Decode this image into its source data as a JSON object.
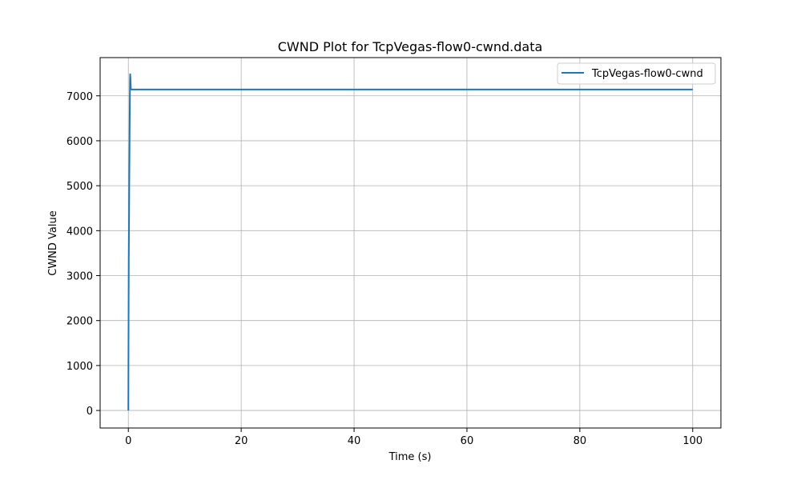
{
  "chart_data": {
    "type": "line",
    "title": "CWND Plot for TcpVegas-flow0-cwnd.data",
    "xlabel": "Time (s)",
    "ylabel": "CWND Value",
    "xlim": [
      -5,
      105
    ],
    "ylim": [
      -390,
      7850
    ],
    "x_ticks": [
      0,
      20,
      40,
      60,
      80,
      100
    ],
    "y_ticks": [
      0,
      1000,
      2000,
      3000,
      4000,
      5000,
      6000,
      7000
    ],
    "grid": true,
    "legend_position": "top-right",
    "series": [
      {
        "name": "TcpVegas-flow0-cwnd",
        "color": "#1f77b4",
        "x": [
          0,
          0.02,
          0.05,
          0.08,
          0.1,
          0.13,
          0.16,
          0.2,
          0.23,
          0.27,
          0.3,
          0.33,
          0.37,
          0.4,
          0.45,
          0.5,
          1,
          100
        ],
        "y": [
          0,
          1100,
          2400,
          3400,
          3800,
          4300,
          5000,
          5700,
          6300,
          6900,
          7350,
          7480,
          7400,
          7300,
          7150,
          7140,
          7140,
          7140
        ]
      }
    ]
  }
}
